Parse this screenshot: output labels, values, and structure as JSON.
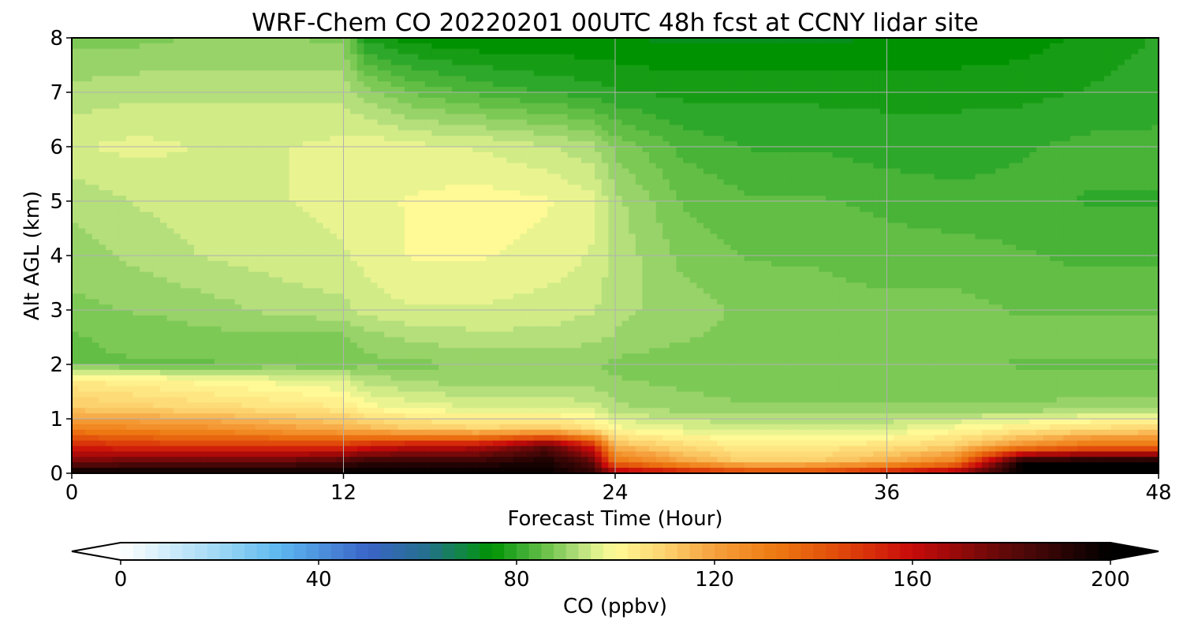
{
  "chart_data": {
    "type": "heatmap",
    "title": "WRF-Chem CO  20220201 00UTC 48h fcst at CCNY lidar site",
    "xlabel": "Forecast Time (Hour)",
    "ylabel": "Alt AGL (km)",
    "xlim": [
      0,
      48
    ],
    "ylim": [
      0,
      8
    ],
    "x_ticks": [
      0,
      12,
      24,
      36,
      48
    ],
    "x_tick_labels": [
      "0",
      "12",
      "24",
      "36",
      "48"
    ],
    "y_ticks": [
      0,
      1,
      2,
      3,
      4,
      5,
      6,
      7,
      8
    ],
    "y_tick_labels": [
      "0",
      "1",
      "2",
      "3",
      "4",
      "5",
      "6",
      "7",
      "8"
    ],
    "grid": true,
    "colorbar": {
      "label": "CO  (ppbv)",
      "range": [
        0,
        200
      ],
      "extend": "both",
      "ticks": [
        0,
        40,
        80,
        120,
        160,
        200
      ],
      "tick_labels": [
        "0",
        "40",
        "80",
        "120",
        "160",
        "200"
      ],
      "color_stops": [
        {
          "value": 0,
          "color": "#ffffff"
        },
        {
          "value": 20,
          "color": "#9ed8f5"
        },
        {
          "value": 32,
          "color": "#5cb8f0"
        },
        {
          "value": 50,
          "color": "#3a64c8"
        },
        {
          "value": 62,
          "color": "#24708c"
        },
        {
          "value": 70,
          "color": "#0e8a3a"
        },
        {
          "value": 75,
          "color": "#009200"
        },
        {
          "value": 80,
          "color": "#2ea82a"
        },
        {
          "value": 86,
          "color": "#6cc24a"
        },
        {
          "value": 92,
          "color": "#aedc78"
        },
        {
          "value": 96,
          "color": "#dcf08c"
        },
        {
          "value": 100,
          "color": "#fffa96"
        },
        {
          "value": 110,
          "color": "#fcd26e"
        },
        {
          "value": 120,
          "color": "#f5a03c"
        },
        {
          "value": 132,
          "color": "#ee7a12"
        },
        {
          "value": 145,
          "color": "#e04a0a"
        },
        {
          "value": 160,
          "color": "#c80a0a"
        },
        {
          "value": 180,
          "color": "#5a0808"
        },
        {
          "value": 200,
          "color": "#000000"
        }
      ]
    },
    "x_hours": [
      0,
      3,
      6,
      9,
      12,
      13,
      15,
      18,
      21,
      23,
      24,
      27,
      30,
      33,
      36,
      39,
      42,
      45,
      48
    ],
    "y_km": [
      0,
      0.2,
      0.5,
      0.8,
      1.2,
      1.7,
      2.0,
      2.5,
      3.0,
      4.0,
      5.0,
      6.0,
      7.0,
      8.0
    ],
    "values_ppbv": [
      [
        200,
        200,
        200,
        200,
        200,
        200,
        200,
        200,
        200,
        190,
        170,
        160,
        150,
        150,
        160,
        170,
        200,
        200,
        200
      ],
      [
        175,
        180,
        180,
        180,
        185,
        190,
        190,
        190,
        195,
        180,
        135,
        120,
        110,
        112,
        118,
        130,
        200,
        200,
        200
      ],
      [
        155,
        150,
        150,
        150,
        150,
        155,
        160,
        162,
        180,
        155,
        115,
        108,
        103,
        104,
        106,
        110,
        125,
        135,
        135
      ],
      [
        130,
        128,
        126,
        122,
        118,
        116,
        112,
        110,
        112,
        106,
        100,
        97,
        95,
        95,
        96,
        100,
        104,
        108,
        110
      ],
      [
        112,
        110,
        108,
        106,
        104,
        100,
        98,
        96,
        96,
        95,
        92,
        90,
        89,
        89,
        89,
        89,
        89,
        90,
        90
      ],
      [
        104,
        102,
        100,
        98,
        96,
        93,
        91,
        90,
        90,
        90,
        89,
        88,
        87,
        87,
        87,
        87,
        87,
        87,
        87
      ],
      [
        86,
        86,
        86,
        87,
        87,
        88,
        88,
        89,
        89,
        89,
        88,
        87,
        87,
        87,
        87,
        87,
        86,
        86,
        86
      ],
      [
        86,
        87,
        88,
        88,
        88,
        90,
        92,
        93,
        93,
        92,
        91,
        89,
        88,
        88,
        88,
        87,
        87,
        87,
        87
      ],
      [
        88,
        89,
        90,
        92,
        93,
        95,
        96,
        96,
        95,
        94,
        92,
        90,
        88,
        87,
        87,
        87,
        86,
        86,
        86
      ],
      [
        90,
        92,
        94,
        95,
        96,
        97,
        99,
        99,
        98,
        96,
        93,
        88,
        86,
        86,
        85,
        85,
        84,
        83,
        83
      ],
      [
        92,
        94,
        95,
        96,
        97,
        98,
        99,
        100,
        99,
        97,
        92,
        86,
        84,
        84,
        83,
        82,
        82,
        81,
        81
      ],
      [
        96,
        97,
        96,
        96,
        97,
        98,
        97,
        96,
        94,
        92,
        88,
        83,
        81,
        81,
        80,
        80,
        81,
        82,
        82
      ],
      [
        92,
        93,
        93,
        93,
        93,
        90,
        86,
        83,
        81,
        80,
        79,
        78,
        78,
        78,
        78,
        78,
        78,
        79,
        80
      ],
      [
        88,
        88,
        89,
        89,
        88,
        78,
        75,
        74,
        74,
        74,
        74,
        73,
        73,
        73,
        74,
        74,
        75,
        77,
        79
      ]
    ]
  }
}
